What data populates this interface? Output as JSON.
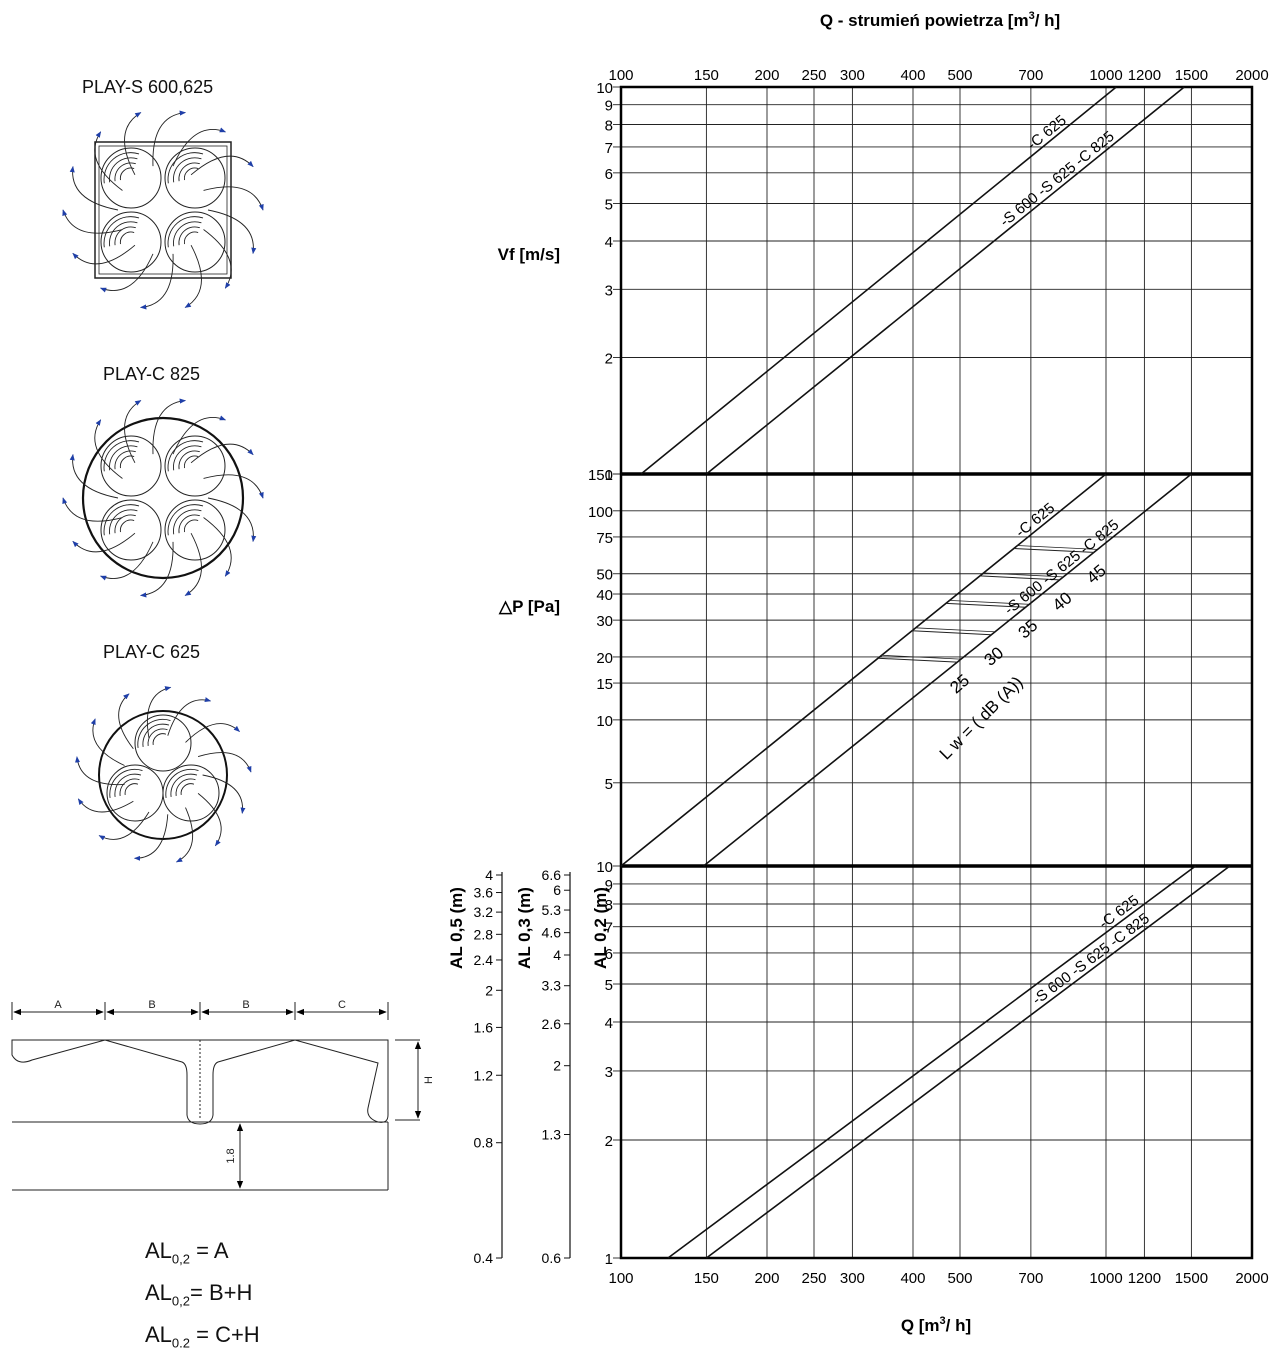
{
  "left_panel": {
    "diagram_titles": [
      "PLAY-S 600,625",
      "PLAY-C 825",
      "PLAY-C 625"
    ],
    "dimension_labels": {
      "a": "A",
      "b1": "B",
      "b2": "B",
      "c": "C",
      "h": "H",
      "height": "1.8"
    },
    "formulas": [
      {
        "base": "AL",
        "sub": "0,2",
        "rhs": " = A"
      },
      {
        "base": "AL",
        "sub": "0,2",
        "rhs": "= B+H"
      },
      {
        "base": "AL",
        "sub": "0.2",
        "rhs": " = C+H"
      }
    ]
  },
  "chart_data": {
    "type": "line",
    "x_scale": "log",
    "xlim": [
      100,
      2000
    ],
    "x_ticks": [
      100,
      150,
      200,
      250,
      300,
      400,
      500,
      700,
      1000,
      1200,
      1500,
      2000
    ],
    "x_label_top_parts": {
      "q": "Q",
      "rest": "  - strumień powietrza [m",
      "sup": "3",
      "end": "/ h]"
    },
    "x_label_bottom_parts": {
      "q": "Q [m",
      "sup": "3",
      "end": "/ h]"
    },
    "panels": [
      {
        "id": "vf",
        "ylabel": "Vf [m/s]",
        "y_scale": "log",
        "ylim": [
          1,
          10
        ],
        "y_tick_labels": [
          [
            1,
            "1"
          ],
          [
            2,
            "2"
          ],
          [
            3,
            "3"
          ],
          [
            4,
            "4"
          ],
          [
            5,
            "5"
          ],
          [
            6,
            "6"
          ],
          [
            7,
            "7"
          ],
          [
            8,
            "8"
          ],
          [
            9,
            "9"
          ],
          [
            10,
            "10"
          ]
        ],
        "series": [
          {
            "label": "-C 625",
            "x": [
              110,
              1050
            ],
            "y": [
              1,
              10
            ]
          },
          {
            "label": "-S 600  -S 625  -C 825",
            "x": [
              150,
              1450
            ],
            "y": [
              1,
              10
            ]
          }
        ]
      },
      {
        "id": "dp",
        "ylabel": "△P [Pa]",
        "y_scale": "log",
        "ylim": [
          2,
          150
        ],
        "y_tick_labels": [
          [
            5,
            "5"
          ],
          [
            10,
            "10"
          ],
          [
            15,
            "15"
          ],
          [
            20,
            "20"
          ],
          [
            30,
            "30"
          ],
          [
            40,
            "40"
          ],
          [
            50,
            "50"
          ],
          [
            75,
            "75"
          ],
          [
            100,
            "100"
          ],
          [
            150,
            "150"
          ]
        ],
        "series": [
          {
            "label": "-C 625",
            "x": [
              100,
              1000
            ],
            "y": [
              2,
              150
            ]
          },
          {
            "label": "-S 600  -S 625  -C 825",
            "x": [
              148,
              1500
            ],
            "y": [
              2,
              150
            ]
          }
        ],
        "noise_levels": [
          "25",
          "30",
          "35",
          "40",
          "45"
        ],
        "noise_label": "L w = ( dB (A))"
      },
      {
        "id": "al",
        "y_scale": "log",
        "ylim": [
          1,
          10
        ],
        "y_tick_labels": [
          [
            1,
            "1"
          ],
          [
            2,
            "2"
          ],
          [
            3,
            "3"
          ],
          [
            4,
            "4"
          ],
          [
            5,
            "5"
          ],
          [
            6,
            "6"
          ],
          [
            7,
            "7"
          ],
          [
            8,
            "8"
          ],
          [
            9,
            "9"
          ],
          [
            10,
            "10"
          ]
        ],
        "series": [
          {
            "label": "-C 625",
            "x": [
              125,
              1530
            ],
            "y": [
              1,
              10
            ]
          },
          {
            "label": "-S 600  -S 625  -C 825",
            "x": [
              150,
              1800
            ],
            "y": [
              1,
              10
            ]
          }
        ],
        "extra_axes": [
          {
            "label": "AL 0,5 (m)",
            "ticks": [
              [
                0.4,
                "0.4"
              ],
              [
                0.8,
                "0.8"
              ],
              [
                1.2,
                "1.2"
              ],
              [
                1.6,
                "1.6"
              ],
              [
                2,
                "2"
              ],
              [
                2.4,
                "2.4"
              ],
              [
                2.8,
                "2.8"
              ],
              [
                3.2,
                "3.2"
              ],
              [
                3.6,
                "3.6"
              ],
              [
                4,
                "4"
              ]
            ]
          },
          {
            "label": "AL 0,3 (m)",
            "ticks": [
              [
                0.6,
                "0.6"
              ],
              [
                1.3,
                "1.3"
              ],
              [
                2,
                "2"
              ],
              [
                2.6,
                "2.6"
              ],
              [
                3.3,
                "3.3"
              ],
              [
                4,
                "4"
              ],
              [
                4.6,
                "4.6"
              ],
              [
                5.3,
                "5.3"
              ],
              [
                6,
                "6"
              ],
              [
                6.6,
                "6.6"
              ]
            ]
          },
          {
            "label": "AL 0,2 (m)",
            "ticks": []
          }
        ]
      }
    ]
  }
}
